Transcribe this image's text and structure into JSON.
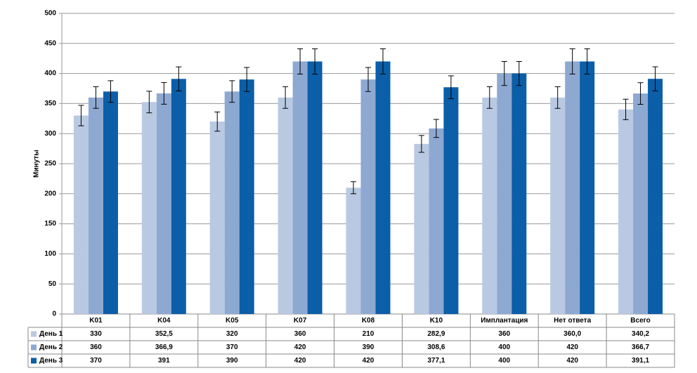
{
  "chart_data": {
    "type": "bar",
    "y_label": "Минуты",
    "categories": [
      "K01",
      "K04",
      "K05",
      "K07",
      "K08",
      "K10",
      "Имплантация",
      "Нет ответа",
      "Всего"
    ],
    "series": [
      {
        "name": "День 1",
        "color": "#b9c9e1",
        "values": [
          330,
          352.5,
          320,
          360,
          210,
          282.9,
          360,
          360.0,
          340.2
        ],
        "value_labels": [
          "330",
          "352,5",
          "320",
          "360",
          "210",
          "282,9",
          "360",
          "360,0",
          "340,2"
        ],
        "errors": [
          17,
          18,
          16,
          18,
          10,
          14,
          18,
          18,
          17
        ]
      },
      {
        "name": "День 2",
        "color": "#8da9d2",
        "values": [
          360,
          366.9,
          370,
          420,
          390,
          308.6,
          400,
          420,
          366.7
        ],
        "value_labels": [
          "360",
          "366,9",
          "370",
          "420",
          "390",
          "308,6",
          "400",
          "420",
          "366,7"
        ],
        "errors": [
          18,
          18,
          18,
          21,
          20,
          15,
          20,
          21,
          18
        ]
      },
      {
        "name": "День 3",
        "color": "#0b5ea8",
        "values": [
          370,
          391,
          390,
          420,
          420,
          377.1,
          400,
          420,
          391.1
        ],
        "value_labels": [
          "370",
          "391",
          "390",
          "420",
          "420",
          "377,1",
          "400",
          "420",
          "391,1"
        ],
        "errors": [
          18,
          20,
          20,
          21,
          21,
          19,
          20,
          21,
          20
        ]
      }
    ],
    "ylim": [
      0,
      500
    ],
    "yticks": [
      0,
      50,
      100,
      150,
      200,
      250,
      300,
      350,
      400,
      450,
      500
    ],
    "grid": true
  }
}
